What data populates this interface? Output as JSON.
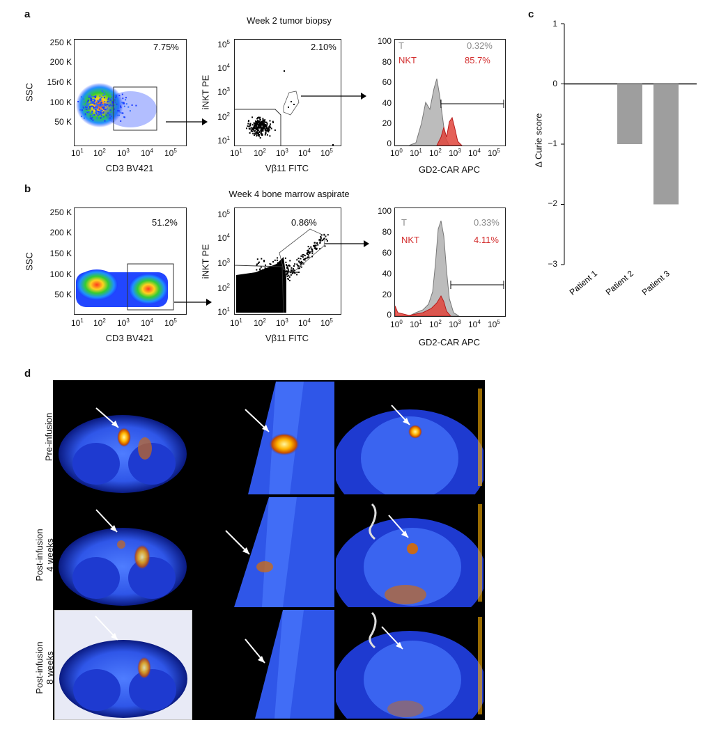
{
  "panels": {
    "a": {
      "label": "a",
      "title": "Week 2 tumor biopsy",
      "p1": {
        "pct": "7.75%",
        "ylabel": "SSC",
        "xlabel": "CD3 BV421",
        "yticks": [
          "250 K",
          "200 K",
          "15r0 K",
          "100 K",
          "50 K"
        ]
      },
      "p2": {
        "pct": "2.10%",
        "ylabel": "iNKT PE",
        "xlabel": "Vβ11 FITC"
      },
      "p3": {
        "xlabel": "GD2-CAR APC",
        "t_label": "T",
        "t_pct": "0.32%",
        "nkt_label": "NKT",
        "nkt_pct": "85.7%",
        "yticks": [
          "100",
          "80",
          "60",
          "40",
          "20",
          "0"
        ]
      }
    },
    "b": {
      "label": "b",
      "title": "Week 4 bone marrow aspirate",
      "p1": {
        "pct": "51.2%",
        "ylabel": "SSC",
        "xlabel": "CD3 BV421",
        "yticks": [
          "250 K",
          "200 K",
          "150 K",
          "100 K",
          "50 K"
        ]
      },
      "p2": {
        "pct": "0.86%",
        "ylabel": "iNKT PE",
        "xlabel": "Vβ11 FITC"
      },
      "p3": {
        "xlabel": "GD2-CAR APC",
        "t_label": "T",
        "t_pct": "0.33%",
        "nkt_label": "NKT",
        "nkt_pct": "4.11%",
        "yticks": [
          "100",
          "80",
          "60",
          "40",
          "20",
          "0"
        ]
      }
    },
    "c": {
      "label": "c",
      "ylabel": "Δ Curie score",
      "yticks": [
        "1",
        "0",
        "−1",
        "−2",
        "−3"
      ]
    },
    "d": {
      "label": "d",
      "rows": [
        {
          "line1": "Pre-infusion",
          "line2": ""
        },
        {
          "line1": "Post-infusion",
          "line2": "4 weeks"
        },
        {
          "line1": "Post-infusion",
          "line2": "8 weeks"
        }
      ]
    }
  },
  "log_ticks": {
    "x_bases": [
      "10",
      "10",
      "10",
      "10",
      "10",
      "10"
    ],
    "x_exps": [
      "0",
      "1",
      "2",
      "3",
      "4",
      "5"
    ]
  },
  "chart_data": {
    "type": "bar",
    "categories": [
      "Patient 1",
      "Patient 2",
      "Patient 3"
    ],
    "values": [
      0,
      -1,
      -2
    ],
    "ylabel": "Δ Curie score",
    "ylim": [
      -3,
      1
    ],
    "color": "#9e9e9e"
  },
  "colors": {
    "nkt": "#d32f2f",
    "t": "#9e9e9e",
    "bar": "#9e9e9e"
  }
}
